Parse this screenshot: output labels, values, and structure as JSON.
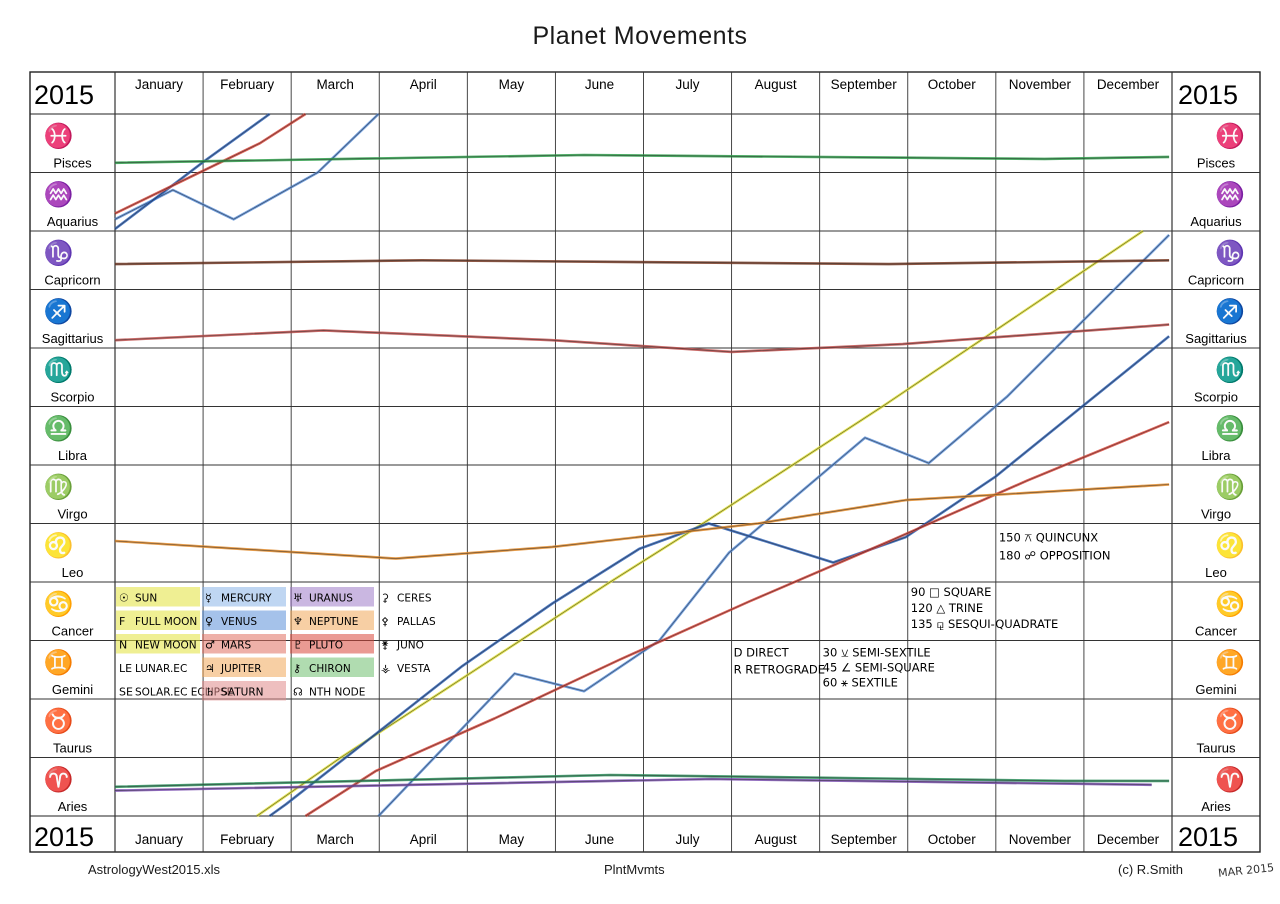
{
  "title": "Planet Movements",
  "year_label": "2015",
  "footer": {
    "file": "AstrologyWest2015.xls",
    "sheet": "PlntMvmts",
    "copyright": "(c) R.Smith",
    "handwritten_date": "MAR 2015"
  },
  "chart_data": {
    "type": "line",
    "title": "Planet Movements",
    "x_axis": {
      "type": "date",
      "range": [
        "2015-01-01",
        "2015-12-31"
      ],
      "months": [
        "January",
        "February",
        "March",
        "April",
        "May",
        "June",
        "July",
        "August",
        "September",
        "October",
        "November",
        "December"
      ]
    },
    "y_axis": {
      "type": "zodiac",
      "signs_top_to_bottom": [
        "Pisces",
        "Aquarius",
        "Capricorn",
        "Sagittarius",
        "Scorpio",
        "Libra",
        "Virgo",
        "Leo",
        "Cancer",
        "Gemini",
        "Taurus",
        "Aries"
      ],
      "glyphs": [
        "♓",
        "♒",
        "♑",
        "♐",
        "♏",
        "♎",
        "♍",
        "♌",
        "♋",
        "♊",
        "♉",
        "♈"
      ]
    },
    "series": [
      {
        "name": "SUN",
        "color": "#e2e23a",
        "points": [
          [
            "2015-02-19",
            0
          ],
          [
            "2015-03-20",
            30
          ],
          [
            "2015-04-20",
            60
          ],
          [
            "2015-05-21",
            90
          ],
          [
            "2015-06-21",
            120
          ],
          [
            "2015-07-23",
            150
          ],
          [
            "2015-08-23",
            180
          ],
          [
            "2015-09-23",
            210
          ],
          [
            "2015-10-23",
            240
          ],
          [
            "2015-11-22",
            270
          ],
          [
            "2015-12-22",
            300
          ]
        ]
      },
      {
        "name": "MERCURY",
        "color": "#5b8fd9",
        "points": [
          [
            "2015-01-01",
            306
          ],
          [
            "2015-01-21",
            321
          ],
          [
            "2015-02-11",
            306
          ],
          [
            "2015-03-12",
            330
          ],
          [
            "2015-04-02",
            0
          ],
          [
            "2015-05-19",
            73
          ],
          [
            "2015-06-12",
            64
          ],
          [
            "2015-07-08",
            90
          ],
          [
            "2015-08-01",
            135
          ],
          [
            "2015-09-17",
            194
          ],
          [
            "2015-10-09",
            181
          ],
          [
            "2015-11-05",
            215
          ],
          [
            "2015-12-31",
            298
          ]
        ]
      },
      {
        "name": "VENUS",
        "color": "#2e63b8",
        "points": [
          [
            "2015-01-01",
            301
          ],
          [
            "2015-02-01",
            336
          ],
          [
            "2015-03-01",
            6
          ],
          [
            "2015-04-01",
            42
          ],
          [
            "2015-05-01",
            77
          ],
          [
            "2015-06-01",
            109
          ],
          [
            "2015-07-01",
            137
          ],
          [
            "2015-07-25",
            150
          ],
          [
            "2015-09-06",
            130
          ],
          [
            "2015-10-01",
            143
          ],
          [
            "2015-11-01",
            174
          ],
          [
            "2015-12-01",
            210
          ],
          [
            "2015-12-31",
            246
          ]
        ]
      },
      {
        "name": "MARS",
        "color": "#d9473b",
        "points": [
          [
            "2015-01-01",
            309
          ],
          [
            "2015-02-20",
            345
          ],
          [
            "2015-04-01",
            23
          ],
          [
            "2015-05-12",
            50
          ],
          [
            "2015-06-24",
            80
          ],
          [
            "2015-08-08",
            110
          ],
          [
            "2015-09-24",
            140
          ],
          [
            "2015-11-12",
            172
          ],
          [
            "2015-12-31",
            202
          ]
        ]
      },
      {
        "name": "JUPITER",
        "color": "#e08a2a",
        "points": [
          [
            "2015-01-01",
            141
          ],
          [
            "2015-04-08",
            132
          ],
          [
            "2015-06-01",
            138
          ],
          [
            "2015-08-11",
            150
          ],
          [
            "2015-10-01",
            162
          ],
          [
            "2015-12-31",
            170
          ]
        ]
      },
      {
        "name": "SATURN",
        "color": "#c0504d",
        "points": [
          [
            "2015-01-01",
            244
          ],
          [
            "2015-03-14",
            249
          ],
          [
            "2015-06-01",
            244
          ],
          [
            "2015-08-02",
            238
          ],
          [
            "2015-09-30",
            242
          ],
          [
            "2015-12-31",
            252
          ]
        ]
      },
      {
        "name": "URANUS",
        "color": "#7a4fb0",
        "points": [
          [
            "2015-01-01",
            13
          ],
          [
            "2015-07-26",
            19
          ],
          [
            "2015-12-25",
            16
          ]
        ]
      },
      {
        "name": "NEPTUNE",
        "color": "#2e9e4a",
        "points": [
          [
            "2015-01-01",
            335
          ],
          [
            "2015-06-12",
            339
          ],
          [
            "2015-11-18",
            337
          ],
          [
            "2015-12-31",
            338
          ]
        ]
      },
      {
        "name": "PLUTO",
        "color": "#7a3b25",
        "points": [
          [
            "2015-01-01",
            283
          ],
          [
            "2015-04-17",
            285
          ],
          [
            "2015-09-25",
            283
          ],
          [
            "2015-12-31",
            285
          ]
        ]
      },
      {
        "name": "CHIRON",
        "color": "#2c8f5c",
        "points": [
          [
            "2015-01-01",
            15
          ],
          [
            "2015-06-21",
            21
          ],
          [
            "2015-11-25",
            18
          ],
          [
            "2015-12-31",
            18
          ]
        ]
      }
    ],
    "legend": [
      {
        "symbol": "☉",
        "label": "SUN",
        "color": "#e2e23a"
      },
      {
        "symbol": "☿",
        "label": "MERCURY",
        "color": "#8ab4e8"
      },
      {
        "symbol": "♅",
        "label": "URANUS",
        "color": "#9e7cc8"
      },
      {
        "symbol": "⚳",
        "label": "CERES",
        "color": ""
      },
      {
        "symbol": "F",
        "label": "FULL MOON",
        "color": "#e2e23a"
      },
      {
        "symbol": "♀",
        "label": "VENUS",
        "color": "#5b8fd9"
      },
      {
        "symbol": "♆",
        "label": "NEPTUNE",
        "color": "#f0a85a"
      },
      {
        "symbol": "⚴",
        "label": "PALLAS",
        "color": ""
      },
      {
        "symbol": "N",
        "label": "NEW MOON",
        "color": "#e2e23a"
      },
      {
        "symbol": "♂",
        "label": "MARS",
        "color": "#e07060"
      },
      {
        "symbol": "♇",
        "label": "PLUTO",
        "color": "#d9473b"
      },
      {
        "symbol": "⚵",
        "label": "JUNO",
        "color": ""
      },
      {
        "symbol": "LE",
        "label": "LUNAR.EC",
        "color": ""
      },
      {
        "symbol": "♃",
        "label": "JUPITER",
        "color": "#f0a85a"
      },
      {
        "symbol": "⚷",
        "label": "CHIRON",
        "color": "#6fbf6f"
      },
      {
        "symbol": "⚶",
        "label": "VESTA",
        "color": ""
      },
      {
        "symbol": "SE",
        "label": "SOLAR.EC ECLIPSE",
        "color": ""
      },
      {
        "symbol": "♄",
        "label": "SATURN",
        "color": "#e08a8a"
      },
      {
        "symbol": "☊",
        "label": "NTH NODE",
        "color": ""
      }
    ],
    "notes": [
      "D DIRECT",
      "R RETROGRADE",
      "30 ⚺ SEMI-SEXTILE",
      "45 ∠ SEMI-SQUARE",
      "60 ⚹ SEXTILE",
      "90 □ SQUARE",
      "120 △ TRINE",
      "135 ⚼ SESQUI-QUADRATE",
      "150 ⚻ QUINCUNX",
      "180 ☍ OPPOSITION"
    ],
    "grid": true
  }
}
